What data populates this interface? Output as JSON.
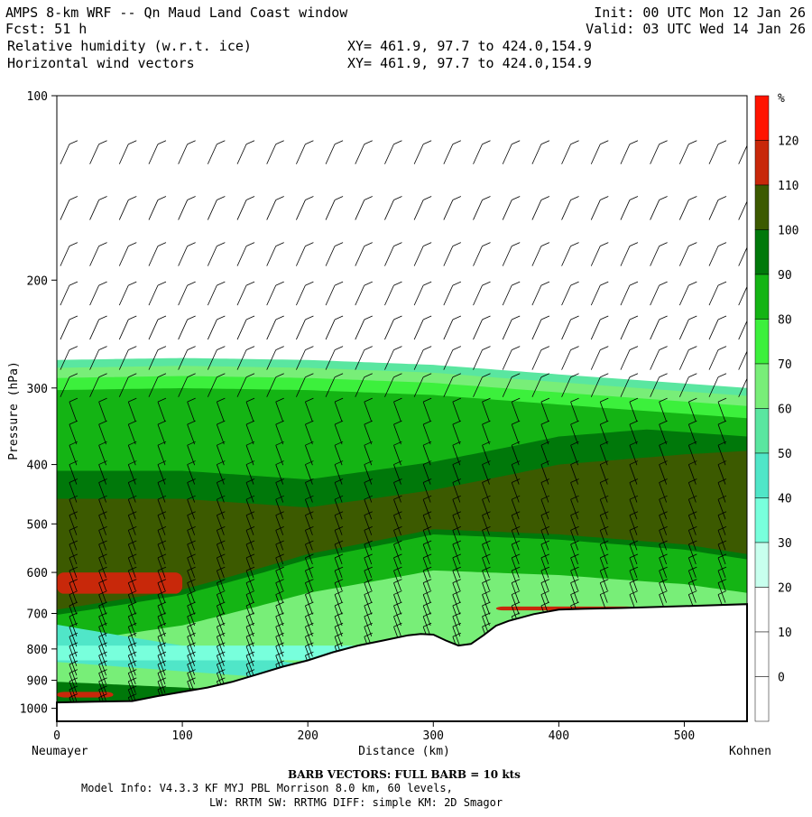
{
  "header": {
    "title": "AMPS 8-km WRF -- Qn Maud Land Coast window",
    "fcst": "Fcst:    51 h",
    "field1": "Relative humidity (w.r.t. ice)",
    "field2": "Horizontal wind vectors",
    "init": "Init: 00 UTC Mon 12 Jan 26",
    "valid": "Valid: 03 UTC Wed 14 Jan 26",
    "xy1": "XY= 461.9, 97.7 to 424.0,154.9",
    "xy2": "XY= 461.9, 97.7 to 424.0,154.9"
  },
  "axes": {
    "ylabel": "Pressure (hPa)",
    "xlabel": "Distance (km)",
    "left_endpoint": "Neumayer",
    "right_endpoint": "Kohnen"
  },
  "colorbar": {
    "unit": "%",
    "levels": [
      "120",
      "110",
      "100",
      "90",
      "80",
      "70",
      "60",
      "50",
      "40",
      "30",
      "20",
      "10",
      "0"
    ],
    "colors": [
      "#ff1400",
      "#c8280a",
      "#3c5a00",
      "#00780a",
      "#14b414",
      "#3cf03c",
      "#78ee78",
      "#5ae6a0",
      "#50e6c8",
      "#78ffdc",
      "#c8ffee",
      "#ffffff",
      "#ffffff",
      "#ffffff"
    ]
  },
  "footer": {
    "barb_note": "BARB VECTORS:  FULL BARB = 10 kts",
    "model_info": "Model Info: V4.3.3   KF     MYJ PBL  Morrison          8.0 km,  60 levels,",
    "model_info2": "LW: RRTM SW: RRTMG   DIFF: simple KM: 2D Smagor"
  },
  "chart_data": {
    "type": "heatmap",
    "title": "Relative humidity (w.r.t. ice)",
    "xlabel": "Distance (km)",
    "ylabel": "Pressure (hPa)",
    "xlim": [
      0,
      550
    ],
    "ylim": [
      1050,
      100
    ],
    "y_scale": "log",
    "x_ticks": [
      "0",
      "100",
      "200",
      "300",
      "400",
      "500"
    ],
    "y_ticks": [
      "100",
      "200",
      "300",
      "400",
      "500",
      "600",
      "700",
      "800",
      "900",
      "1000"
    ],
    "grid": false,
    "legend": "right colorbar",
    "terrain_surface": {
      "x": [
        0,
        30,
        60,
        80,
        100,
        120,
        140,
        160,
        180,
        200,
        220,
        240,
        260,
        280,
        290,
        300,
        310,
        320,
        330,
        340,
        350,
        360,
        380,
        400,
        420,
        450,
        480,
        510,
        550
      ],
      "p": [
        978,
        975,
        973,
        955,
        940,
        925,
        905,
        880,
        855,
        835,
        810,
        790,
        775,
        760,
        756,
        758,
        775,
        790,
        785,
        760,
        733,
        720,
        702,
        690,
        688,
        686,
        683,
        680,
        676
      ]
    },
    "moist_layer": {
      "x": [
        0,
        100,
        200,
        300,
        400,
        500,
        550
      ],
      "top_p": [
        270,
        268,
        270,
        275,
        285,
        295,
        300
      ],
      "rh_100_band_top_p": [
        455,
        455,
        470,
        440,
        400,
        385,
        380
      ],
      "rh_100_band_bottom_p": [
        690,
        640,
        560,
        510,
        520,
        540,
        560
      ]
    },
    "annotations": [
      "RH > 110% pockets near 620 hPa (x 0-100) and 950 hPa (x 0-40)"
    ]
  }
}
